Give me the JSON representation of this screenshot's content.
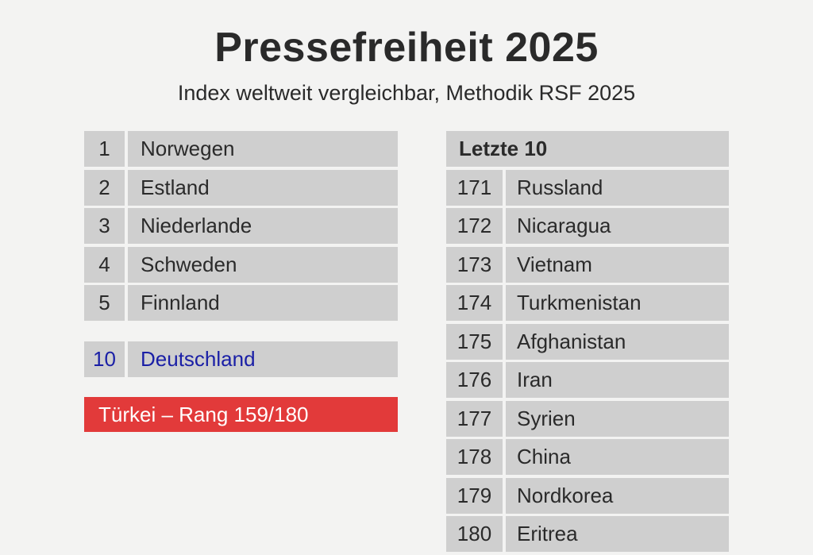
{
  "title": "Pressefreiheit 2025",
  "subtitle": "Index weltweit vergleichbar, Methodik RSF 2025",
  "top5": [
    {
      "rank": "1",
      "country": "Norwegen"
    },
    {
      "rank": "2",
      "country": "Estland"
    },
    {
      "rank": "3",
      "country": "Niederlande"
    },
    {
      "rank": "4",
      "country": "Schweden"
    },
    {
      "rank": "5",
      "country": "Finnland"
    }
  ],
  "germany": {
    "rank": "10",
    "country": "Deutschland"
  },
  "turkey": {
    "label": "Türkei – Rang 159/180"
  },
  "bottom10": {
    "header": "Letzte 10",
    "rows": [
      {
        "rank": "171",
        "country": "Russland"
      },
      {
        "rank": "172",
        "country": "Nicaragua"
      },
      {
        "rank": "173",
        "country": "Vietnam"
      },
      {
        "rank": "174",
        "country": "Turkmenistan"
      },
      {
        "rank": "175",
        "country": "Afghanistan"
      },
      {
        "rank": "176",
        "country": "Iran"
      },
      {
        "rank": "177",
        "country": "Syrien"
      },
      {
        "rank": "178",
        "country": "China"
      },
      {
        "rank": "179",
        "country": "Nordkorea"
      },
      {
        "rank": "180",
        "country": "Eritrea"
      }
    ]
  },
  "colors": {
    "background": "#f3f3f2",
    "cell": "#cfcfcf",
    "highlight_text": "#1a1fa6",
    "alert": "#e23a3a"
  }
}
